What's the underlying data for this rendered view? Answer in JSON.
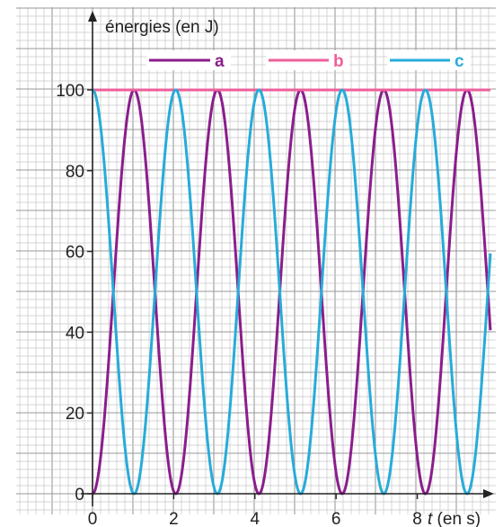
{
  "chart_data": {
    "type": "line",
    "title": "",
    "ylabel": "énergies (en J)",
    "xlabel_var": "t",
    "xlabel_unit": " (en s)",
    "xlim": [
      0,
      9.8
    ],
    "ylim": [
      0,
      100
    ],
    "xticks": [
      0,
      2,
      4,
      6,
      8
    ],
    "yticks": [
      0,
      20,
      40,
      60,
      80,
      100
    ],
    "grid": true,
    "legend_position": "top-right",
    "colors": {
      "grid_minor": "#c6c6c6",
      "grid_major": "#9a9a9a",
      "axis": "#222222"
    },
    "series": [
      {
        "name": "a",
        "color": "#8b1d8c",
        "formula": "sin2",
        "amplitude": 100,
        "period": 2.05
      },
      {
        "name": "b",
        "color": "#ef5f9b",
        "formula": "constant",
        "value": 100
      },
      {
        "name": "c",
        "color": "#27abd9",
        "formula": "cos2",
        "amplitude": 100,
        "period": 2.05
      }
    ]
  }
}
